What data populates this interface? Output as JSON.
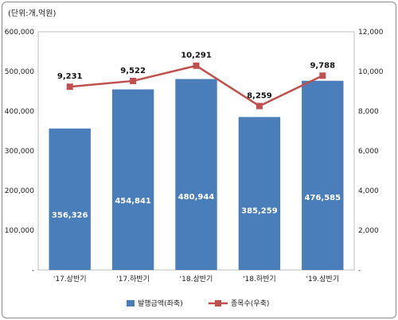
{
  "unit_note": "(단위:개,억원)",
  "chart_data": {
    "type": "bar",
    "categories": [
      "'17.상반기",
      "'17.하반기",
      "'18.상반기",
      "'18.하반기",
      "'19.상반기"
    ],
    "series": [
      {
        "name": "발행금액(좌축)",
        "type": "bar",
        "axis": "left",
        "values": [
          356326,
          454841,
          480944,
          385259,
          476585
        ],
        "labels": [
          "356,326",
          "454,841",
          "480,944",
          "385,259",
          "476,585"
        ],
        "color": "#4a7ebb"
      },
      {
        "name": "종목수(우축)",
        "type": "line",
        "axis": "right",
        "values": [
          9231,
          9522,
          10291,
          8259,
          9788
        ],
        "labels": [
          "9,231",
          "9,522",
          "10,291",
          "8,259",
          "9,788"
        ],
        "color": "#c0504d"
      }
    ],
    "left_axis": {
      "ylim": [
        0,
        600000
      ],
      "ticks": [
        0,
        100000,
        200000,
        300000,
        400000,
        500000,
        600000
      ],
      "tick_labels": [
        "-",
        "100,000",
        "200,000",
        "300,000",
        "400,000",
        "500,000",
        "600,000"
      ]
    },
    "right_axis": {
      "ylim": [
        0,
        12000
      ],
      "ticks": [
        0,
        2000,
        4000,
        6000,
        8000,
        10000,
        12000
      ],
      "tick_labels": [
        "-",
        "2,000",
        "4,000",
        "6,000",
        "8,000",
        "10,000",
        "12,000"
      ]
    },
    "grid": false,
    "legend_position": "bottom"
  }
}
